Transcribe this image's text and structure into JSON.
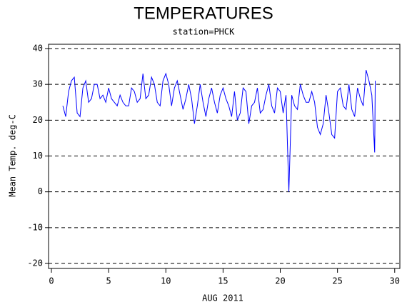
{
  "chart_data": {
    "type": "line",
    "title": "TEMPERATURES",
    "subtitle": "station=PHCK",
    "x_label": "AUG 2011",
    "y_label": "Mean Temp. deg-C",
    "xlim": [
      -0.25,
      30.45
    ],
    "ylim": [
      -21.4,
      41.2
    ],
    "xticks": [
      0,
      5,
      10,
      15,
      20,
      25,
      30
    ],
    "yticks": [
      -20,
      -10,
      0,
      10,
      20,
      30,
      40
    ],
    "grid": true,
    "x": [
      1,
      1.25,
      1.5,
      1.75,
      2,
      2.25,
      2.5,
      2.75,
      3,
      3.25,
      3.5,
      3.75,
      4,
      4.25,
      4.5,
      4.75,
      5,
      5.25,
      5.5,
      5.75,
      6,
      6.25,
      6.5,
      6.75,
      7,
      7.25,
      7.5,
      7.75,
      8,
      8.25,
      8.5,
      8.75,
      9,
      9.25,
      9.5,
      9.75,
      10,
      10.25,
      10.5,
      10.75,
      11,
      11.25,
      11.5,
      11.75,
      12,
      12.25,
      12.5,
      12.75,
      13,
      13.25,
      13.5,
      13.75,
      14,
      14.25,
      14.5,
      14.75,
      15,
      15.25,
      15.5,
      15.75,
      16,
      16.25,
      16.5,
      16.75,
      17,
      17.25,
      17.5,
      17.75,
      18,
      18.25,
      18.5,
      18.75,
      19,
      19.25,
      19.5,
      19.75,
      20,
      20.25,
      20.5,
      20.75,
      21,
      21.25,
      21.5,
      21.75,
      22,
      22.25,
      22.5,
      22.75,
      23,
      23.25,
      23.5,
      23.75,
      24,
      24.25,
      24.5,
      24.75,
      25,
      25.25,
      25.5,
      25.75,
      26,
      26.25,
      26.5,
      26.75,
      27,
      27.25,
      27.5,
      27.75,
      28,
      28.25,
      28.3
    ],
    "series": [
      {
        "name": "temperature",
        "color": "#0000ff",
        "values": [
          24,
          21,
          28,
          31,
          32,
          22,
          21,
          29,
          31,
          25,
          26,
          30,
          30,
          26,
          27,
          25,
          29,
          26,
          25,
          24,
          27,
          25,
          24,
          24,
          29,
          28,
          25,
          26,
          33,
          26,
          27,
          32,
          30,
          25,
          24,
          31,
          33,
          30,
          24,
          29,
          31,
          27,
          23,
          26,
          30,
          26,
          19,
          24,
          30,
          25,
          21,
          26,
          29,
          25,
          22,
          27,
          29,
          26,
          24,
          21,
          28,
          20,
          22,
          29,
          28,
          19,
          24,
          25,
          29,
          22,
          23,
          27,
          30,
          24,
          22,
          29,
          28,
          22,
          27,
          0,
          27,
          24,
          23,
          30,
          27,
          25,
          25,
          28,
          25,
          18,
          16,
          19,
          27,
          22,
          16,
          15,
          28,
          29,
          24,
          23,
          30,
          23,
          21,
          29,
          26,
          24,
          34,
          31,
          27,
          11,
          31
        ]
      }
    ]
  }
}
